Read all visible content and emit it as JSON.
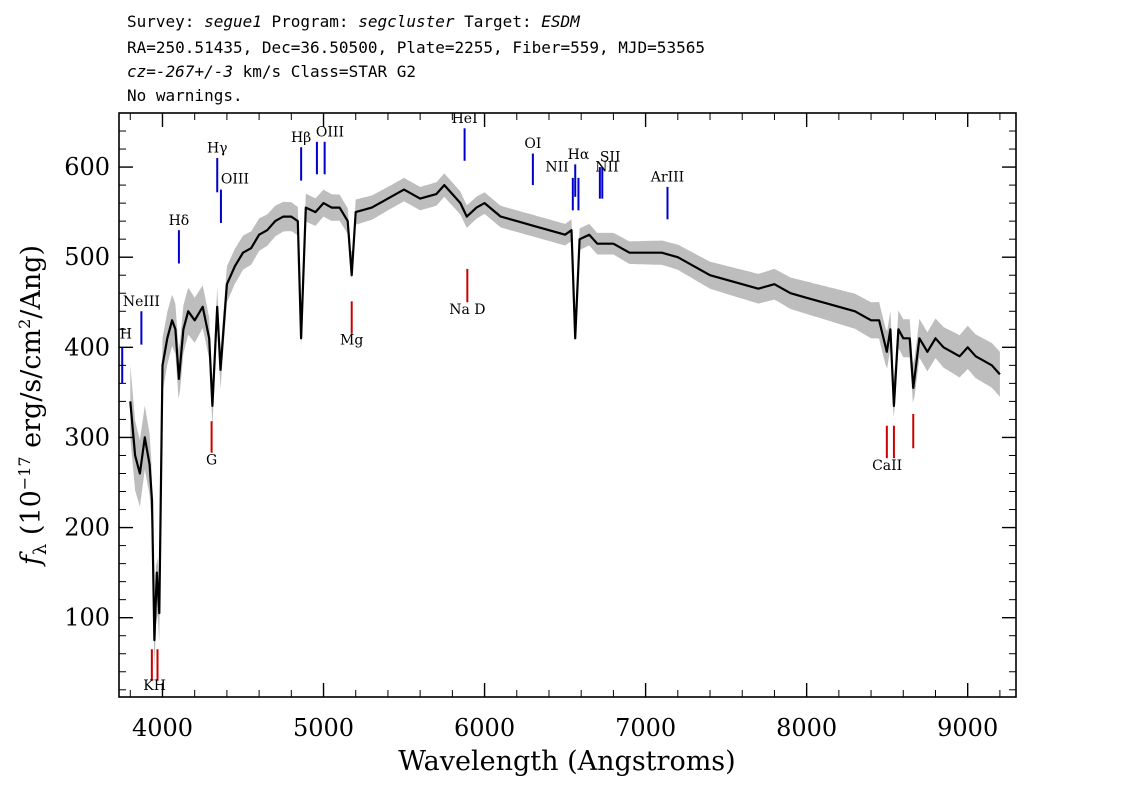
{
  "header": {
    "line1": {
      "survey_label": "Survey: ",
      "survey": "segue1",
      "program_label": " Program: ",
      "program": "segcluster",
      "target_label": " Target: ",
      "target": "ESDM"
    },
    "line2": "RA=250.51435, Dec=36.50500, Plate=2255, Fiber=559, MJD=53565",
    "line3": {
      "cz_label": "cz=",
      "cz_value": "-267+/-3",
      "rest": " km/s Class=STAR G2"
    },
    "line4": "No warnings."
  },
  "chart_data": {
    "type": "line",
    "xlabel": "Wavelength (Angstroms)",
    "ylabel": "f_λ (10^-17 erg/s/cm^2/Ang)",
    "xlim": [
      3730,
      9300
    ],
    "ylim": [
      12,
      660
    ],
    "x_ticks": [
      4000,
      5000,
      6000,
      7000,
      8000,
      9000
    ],
    "y_ticks": [
      100,
      200,
      300,
      400,
      500,
      600
    ],
    "x_tick_labels": [
      "4000",
      "5000",
      "6000",
      "7000",
      "8000",
      "9000"
    ],
    "y_tick_labels": [
      "100",
      "200",
      "300",
      "400",
      "500",
      "600"
    ],
    "grid": false,
    "series": [
      {
        "role": "flux",
        "color": "#000000",
        "x": [
          3800,
          3830,
          3860,
          3890,
          3920,
          3935,
          3950,
          3965,
          3980,
          4000,
          4030,
          4060,
          4080,
          4102,
          4130,
          4160,
          4200,
          4250,
          4290,
          4310,
          4340,
          4360,
          4400,
          4450,
          4500,
          4550,
          4600,
          4650,
          4700,
          4750,
          4800,
          4840,
          4861,
          4890,
          4950,
          5000,
          5050,
          5100,
          5150,
          5175,
          5200,
          5300,
          5400,
          5500,
          5600,
          5700,
          5750,
          5800,
          5850,
          5890,
          5950,
          6000,
          6100,
          6200,
          6300,
          6400,
          6500,
          6540,
          6563,
          6590,
          6650,
          6700,
          6800,
          6900,
          7000,
          7100,
          7200,
          7300,
          7400,
          7500,
          7600,
          7700,
          7800,
          7900,
          8000,
          8100,
          8200,
          8300,
          8400,
          8450,
          8498,
          8520,
          8542,
          8570,
          8600,
          8640,
          8662,
          8700,
          8750,
          8800,
          8850,
          8900,
          8950,
          9000,
          9050,
          9100,
          9150,
          9200
        ],
        "y": [
          340,
          280,
          260,
          300,
          270,
          230,
          75,
          150,
          105,
          380,
          410,
          430,
          420,
          365,
          420,
          440,
          430,
          445,
          410,
          335,
          445,
          375,
          470,
          490,
          505,
          510,
          525,
          530,
          540,
          545,
          545,
          540,
          410,
          555,
          550,
          560,
          555,
          555,
          540,
          480,
          550,
          555,
          565,
          575,
          565,
          570,
          580,
          570,
          560,
          545,
          555,
          560,
          545,
          540,
          535,
          530,
          525,
          530,
          410,
          520,
          525,
          515,
          515,
          505,
          505,
          505,
          500,
          490,
          480,
          475,
          470,
          465,
          470,
          460,
          455,
          450,
          445,
          440,
          430,
          430,
          395,
          420,
          335,
          420,
          410,
          410,
          355,
          410,
          395,
          410,
          400,
          395,
          390,
          400,
          390,
          385,
          380,
          370
        ]
      },
      {
        "role": "error-envelope",
        "color": "#bdbdbd",
        "x": [
          3800,
          3900,
          4000,
          4200,
          4400,
          4600,
          4800,
          5000,
          5200,
          5400,
          5600,
          5800,
          6000,
          6200,
          6400,
          6600,
          6800,
          7000,
          7200,
          7400,
          7600,
          7800,
          8000,
          8200,
          8400,
          8600,
          8800,
          9000,
          9200
        ],
        "y_half_width": [
          40,
          35,
          30,
          25,
          20,
          18,
          16,
          15,
          14,
          13,
          13,
          13,
          12,
          12,
          12,
          12,
          12,
          13,
          14,
          15,
          16,
          17,
          18,
          19,
          20,
          21,
          22,
          24,
          25
        ]
      }
    ],
    "emission_lines": [
      {
        "label": "H",
        "wavelength": 3750,
        "y_bottom": 360,
        "y_top": 400,
        "color": "#0000cc"
      },
      {
        "label": "NeIII",
        "wavelength": 3869,
        "y_bottom": 403,
        "y_top": 440,
        "color": "#0000cc"
      },
      {
        "label": "Hδ",
        "wavelength": 4102,
        "y_bottom": 493,
        "y_top": 530,
        "color": "#0000cc"
      },
      {
        "label": "Hγ",
        "wavelength": 4340,
        "y_bottom": 572,
        "y_top": 610,
        "color": "#0000cc"
      },
      {
        "label": "OIII",
        "wavelength": 4363,
        "y_bottom": 538,
        "y_top": 575,
        "color": "#0000cc"
      },
      {
        "label": "Hβ",
        "wavelength": 4861,
        "y_bottom": 585,
        "y_top": 622,
        "color": "#0000cc"
      },
      {
        "label": "OIII",
        "wavelength": 4959,
        "y_bottom": 592,
        "y_top": 628,
        "color": "#0000cc"
      },
      {
        "label": "OIII",
        "wavelength": 5007,
        "y_bottom": 592,
        "y_top": 628,
        "color": "#0000cc"
      },
      {
        "label": "HeI",
        "wavelength": 5876,
        "y_bottom": 607,
        "y_top": 643,
        "color": "#0000cc"
      },
      {
        "label": "OI",
        "wavelength": 6300,
        "y_bottom": 580,
        "y_top": 615,
        "color": "#0000cc"
      },
      {
        "label": "NII",
        "wavelength": 6548,
        "y_bottom": 552,
        "y_top": 588,
        "color": "#0000cc"
      },
      {
        "label": "Hα",
        "wavelength": 6563,
        "y_bottom": 567,
        "y_top": 603,
        "color": "#0000cc"
      },
      {
        "label": "NII",
        "wavelength": 6583,
        "y_bottom": 552,
        "y_top": 588,
        "color": "#0000cc"
      },
      {
        "label": "SII",
        "wavelength": 6716,
        "y_bottom": 565,
        "y_top": 600,
        "color": "#0000cc"
      },
      {
        "label": "SII",
        "wavelength": 6731,
        "y_bottom": 565,
        "y_top": 600,
        "color": "#0000cc"
      }
    ],
    "emission_labels_extra": [
      {
        "label": "ArIII",
        "wavelength": 7136,
        "y_bottom": 542,
        "y_top": 578,
        "color": "#0000cc"
      }
    ],
    "absorption_lines": [
      {
        "label": "K",
        "wavelength": 3934,
        "y_bottom": 30,
        "y_top": 65,
        "color": "#cc0000"
      },
      {
        "label": "H",
        "wavelength": 3969,
        "y_bottom": 30,
        "y_top": 65,
        "color": "#cc0000"
      },
      {
        "label": "G",
        "wavelength": 4305,
        "y_bottom": 283,
        "y_top": 318,
        "color": "#cc0000"
      },
      {
        "label": "Mg",
        "wavelength": 5175,
        "y_bottom": 415,
        "y_top": 451,
        "color": "#cc0000"
      },
      {
        "label": "Na D",
        "wavelength": 5893,
        "y_bottom": 450,
        "y_top": 487,
        "color": "#cc0000"
      },
      {
        "label": "CaII",
        "wavelength": 8498,
        "y_bottom": 277,
        "y_top": 313,
        "color": "#cc0000"
      },
      {
        "label": "CaII",
        "wavelength": 8542,
        "y_bottom": 277,
        "y_top": 313,
        "color": "#cc0000"
      },
      {
        "label": "CaII",
        "wavelength": 8662,
        "y_bottom": 288,
        "y_top": 326,
        "color": "#cc0000"
      }
    ],
    "line_labels": {
      "H": "H",
      "NeIII": "NeIII",
      "Hdelta": "Hδ",
      "Hgamma": "Hγ",
      "OIII": "OIII",
      "Hbeta": "Hβ",
      "HeI": "HeI",
      "OI": "OI",
      "NII_left": "NII",
      "Halpha": "Hα",
      "NII_right": "NII",
      "SII": "SII",
      "ArIII": "ArIII",
      "KH": "KH",
      "G": "G",
      "Mg": "Mg",
      "NaD": "Na  D",
      "CaII": "CaII"
    }
  }
}
